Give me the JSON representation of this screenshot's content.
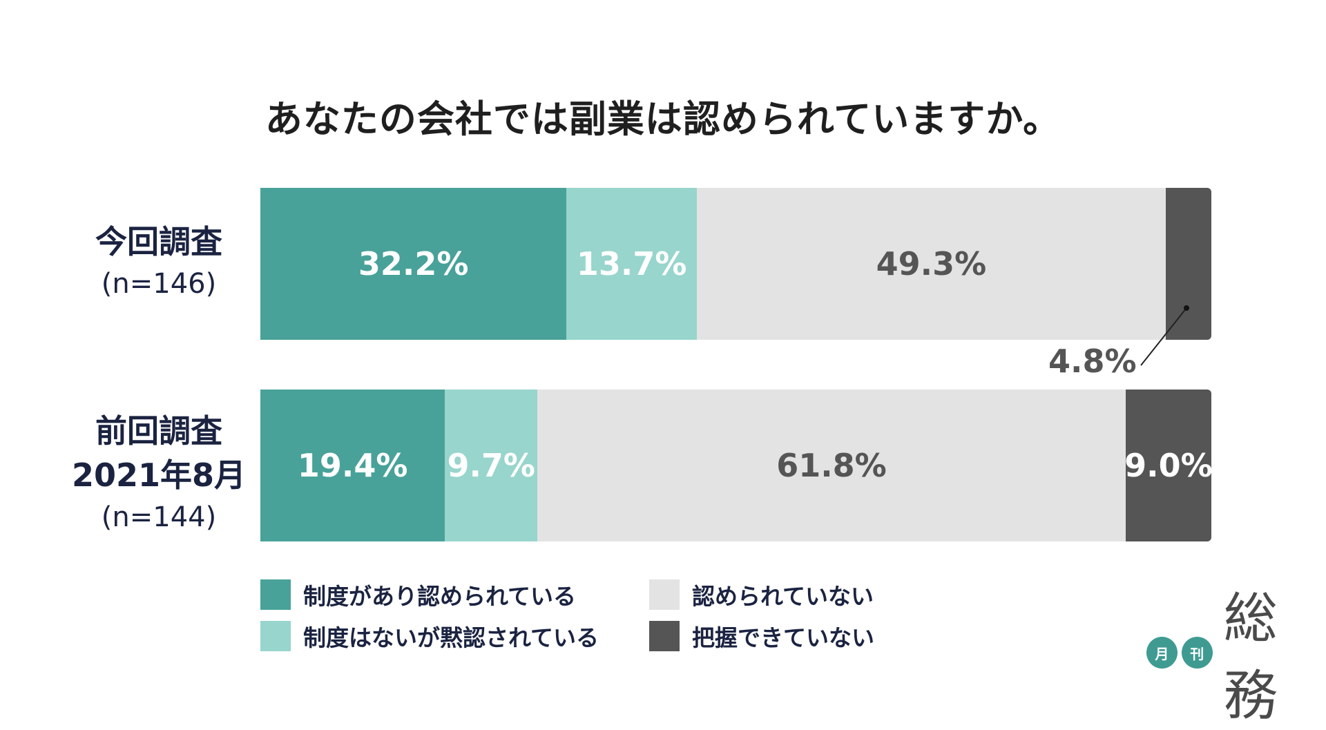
{
  "title": "あなたの会社では副業は認められていますか。",
  "colors": {
    "approved": "#48a299",
    "tacit": "#98d5cc",
    "not_approved": "#e3e3e3",
    "unknown": "#555555"
  },
  "rows": [
    {
      "label_lines": [
        "今回調査"
      ],
      "n": "(n=146)"
    },
    {
      "label_lines": [
        "前回調査",
        "2021年8月"
      ],
      "n": "(n=144)"
    }
  ],
  "legend": [
    {
      "label": "制度があり認められている"
    },
    {
      "label": "制度はないが黙認されている"
    },
    {
      "label": "認められていない"
    },
    {
      "label": "把握できていない"
    }
  ],
  "chart_data": {
    "type": "bar",
    "orientation": "horizontal",
    "stacked": true,
    "title": "あなたの会社では副業は認められていますか。",
    "categories": [
      "今回調査 (n=146)",
      "前回調査 2021年8月 (n=144)"
    ],
    "series": [
      {
        "name": "制度があり認められている",
        "values": [
          32.2,
          19.4
        ],
        "labels": [
          "32.2%",
          "19.4%"
        ]
      },
      {
        "name": "制度はないが黙認されている",
        "values": [
          13.7,
          9.7
        ],
        "labels": [
          "13.7%",
          "9.7%"
        ]
      },
      {
        "name": "認められていない",
        "values": [
          49.3,
          61.8
        ],
        "labels": [
          "49.3%",
          "61.8%"
        ]
      },
      {
        "name": "把握できていない",
        "values": [
          4.8,
          9.0
        ],
        "labels": [
          "4.8%",
          "9.0%"
        ]
      }
    ],
    "legend_position": "bottom",
    "grid": false
  },
  "logo": {
    "small1": "月",
    "small2": "刊",
    "main": "総務"
  }
}
